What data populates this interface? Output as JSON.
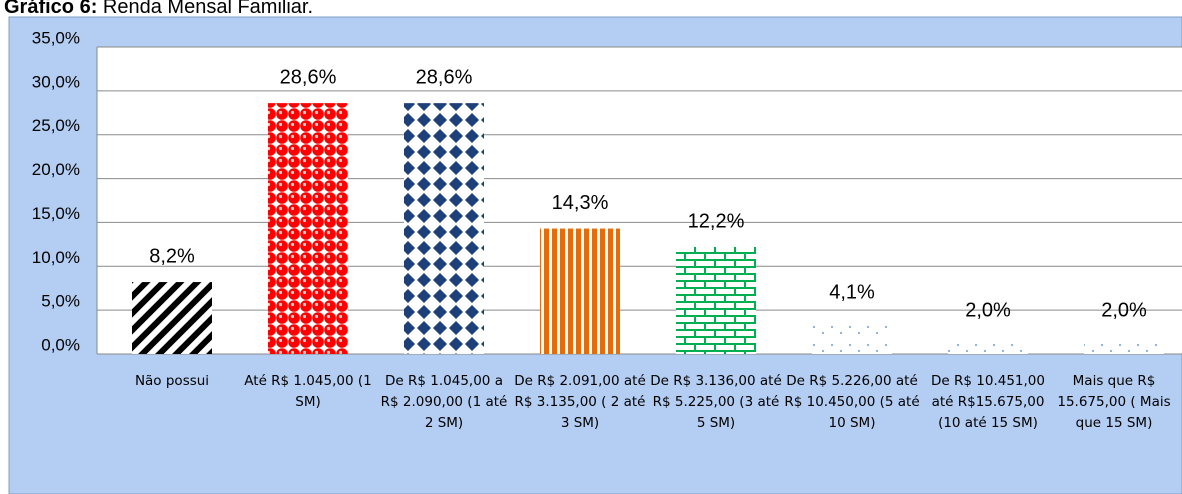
{
  "chart_data": {
    "type": "bar",
    "title_label": "Gráfico 6:",
    "title": "Renda Mensal Familiar.",
    "categories": [
      "Não possui",
      "Até R$ 1.045,00 (1 SM)",
      "De R$ 1.045,00 a R$ 2.090,00 (1 até 2 SM)",
      "De R$ 2.091,00 até R$ 3.135,00 ( 2 até 3 SM)",
      "De R$ 3.136,00 até R$ 5.225,00 (3 até 5 SM)",
      "De R$ 5.226,00 até R$ 10.450,00 (5 até 10 SM)",
      "De R$ 10.451,00 até R$15.675,00 (10 até 15 SM)",
      "Mais que R$ 15.675,00 ( Mais que 15 SM)"
    ],
    "values": [
      8.2,
      28.6,
      28.6,
      14.3,
      12.2,
      4.1,
      2.0,
      2.0
    ],
    "value_labels": [
      "8,2%",
      "28,6%",
      "28,6%",
      "14,3%",
      "12,2%",
      "4,1%",
      "2,0%",
      "2,0%"
    ],
    "colors": [
      "#000000",
      "#ff0000",
      "#1f3f7a",
      "#e46c0a",
      "#00b050",
      "#6f9fd0",
      "#6f9fd0",
      "#6f9fd0"
    ],
    "ylim": [
      0,
      35
    ],
    "yticks": [
      {
        "value": 0,
        "label": "0,0%"
      },
      {
        "value": 5,
        "label": "5,0%"
      },
      {
        "value": 10,
        "label": "10,0%"
      },
      {
        "value": 15,
        "label": "15,0%"
      },
      {
        "value": 20,
        "label": "20,0%"
      },
      {
        "value": 25,
        "label": "25,0%"
      },
      {
        "value": 30,
        "label": "30,0%"
      },
      {
        "value": 35,
        "label": "35,0%"
      }
    ],
    "grid": true
  }
}
